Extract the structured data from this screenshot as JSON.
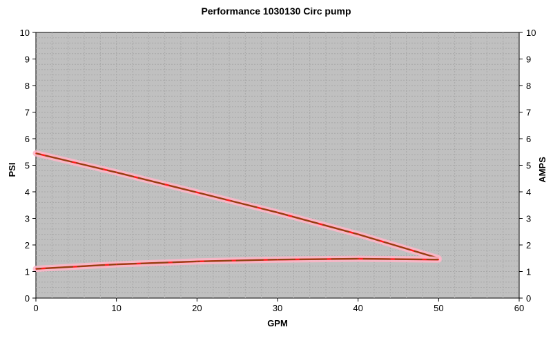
{
  "chart_data": {
    "type": "line",
    "title": "Performance 1030130 Circ pump",
    "xlabel": "GPM",
    "ylabel": "PSI",
    "y2label": "AMPS",
    "xlim": [
      0,
      60
    ],
    "ylim": [
      0,
      10
    ],
    "y2lim": [
      0,
      10
    ],
    "x_ticks": [
      "0",
      "10",
      "20",
      "30",
      "40",
      "50",
      "60"
    ],
    "y_ticks": [
      "0",
      "1",
      "2",
      "3",
      "4",
      "5",
      "6",
      "7",
      "8",
      "9",
      "10"
    ],
    "y2_ticks": [
      "0",
      "1",
      "2",
      "3",
      "4",
      "5",
      "6",
      "7",
      "8",
      "9",
      "10"
    ],
    "grid": true,
    "legend": "none",
    "series": [
      {
        "axis": "left",
        "x": [
          0,
          10,
          20,
          30,
          40,
          50
        ],
        "y": [
          5.45,
          4.73,
          3.98,
          3.22,
          2.4,
          1.5
        ],
        "color": "#ff1e1e",
        "highlight_color": "#ffb6c8"
      },
      {
        "axis": "right",
        "x": [
          0,
          10,
          20,
          30,
          40,
          50
        ],
        "y": [
          1.1,
          1.27,
          1.38,
          1.45,
          1.48,
          1.45
        ],
        "color": "#ff1e1e",
        "highlight_color": "#ffb6c8"
      }
    ],
    "overlay_color": "#8b4513",
    "plot_background": "#c0c0c0",
    "grid_color": "#a8a8a8"
  }
}
